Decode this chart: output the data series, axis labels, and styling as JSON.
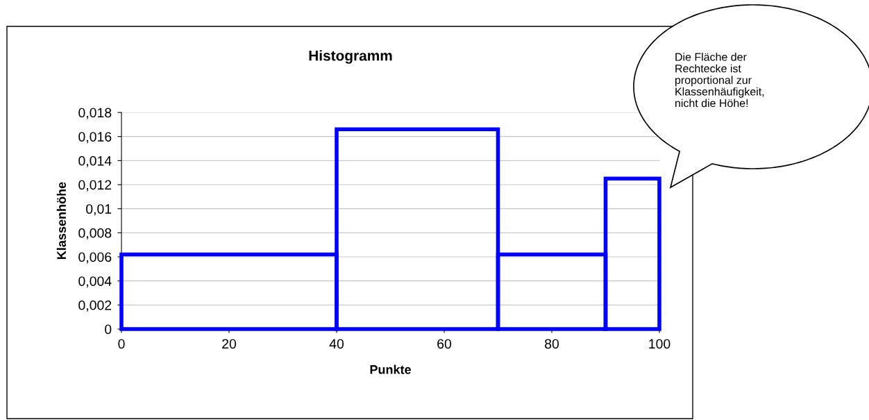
{
  "chart_data": {
    "type": "histogram",
    "title": "Histogramm",
    "xlabel": "Punkte",
    "ylabel": "Klassenhöhe",
    "bins": [
      0,
      40,
      70,
      90,
      100
    ],
    "values": [
      0.0062,
      0.0166,
      0.0062,
      0.0125
    ],
    "color": "#0000ff",
    "xlim": [
      0,
      100
    ],
    "xticks": [
      0,
      20,
      40,
      60,
      80,
      100
    ],
    "ylim": [
      0,
      0.018
    ],
    "yticks": [
      0,
      {
        "value": 0.002,
        "label": "0,002"
      },
      {
        "value": 0.004,
        "label": "0,004"
      },
      {
        "value": 0.006,
        "label": "0,006"
      },
      {
        "value": 0.008,
        "label": "0,008"
      },
      {
        "value": 0.01,
        "label": "0,01"
      },
      {
        "value": 0.012,
        "label": "0,012"
      },
      {
        "value": 0.014,
        "label": "0,014"
      },
      {
        "value": 0.016,
        "label": "0,016"
      },
      {
        "value": 0.018,
        "label": "0,018"
      }
    ],
    "grid": "y",
    "annotations": [
      "Die Fläche der\nRechtecke ist\nproportional zur\nKlassenhäufigkeit,\nnicht die Höhe!"
    ]
  }
}
